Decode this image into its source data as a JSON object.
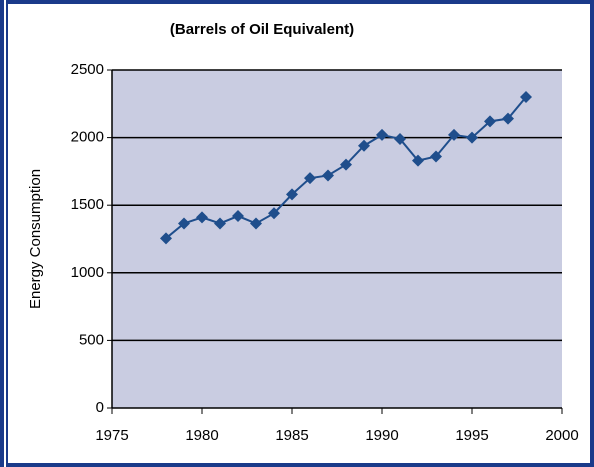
{
  "chart_data": {
    "type": "line",
    "title": "(Barrels of Oil Equivalent)",
    "y_label": "Energy Consumption",
    "x": [
      1978,
      1979,
      1980,
      1981,
      1982,
      1983,
      1984,
      1985,
      1986,
      1987,
      1988,
      1989,
      1990,
      1991,
      1992,
      1993,
      1994,
      1995,
      1996,
      1997,
      1998
    ],
    "series": [
      {
        "color": "#1f4e8c",
        "values": [
          1255,
          1365,
          1410,
          1365,
          1420,
          1365,
          1440,
          1580,
          1700,
          1720,
          1800,
          1940,
          2020,
          1990,
          1830,
          1860,
          2020,
          2000,
          2120,
          2140,
          2300
        ]
      }
    ],
    "xlim": [
      1975,
      2000
    ],
    "xticks": [
      1975,
      1980,
      1985,
      1990,
      1995,
      2000
    ],
    "ylim": [
      0,
      2500
    ],
    "yticks": [
      0,
      500,
      1000,
      1500,
      2000,
      2500
    ],
    "grid": true
  }
}
